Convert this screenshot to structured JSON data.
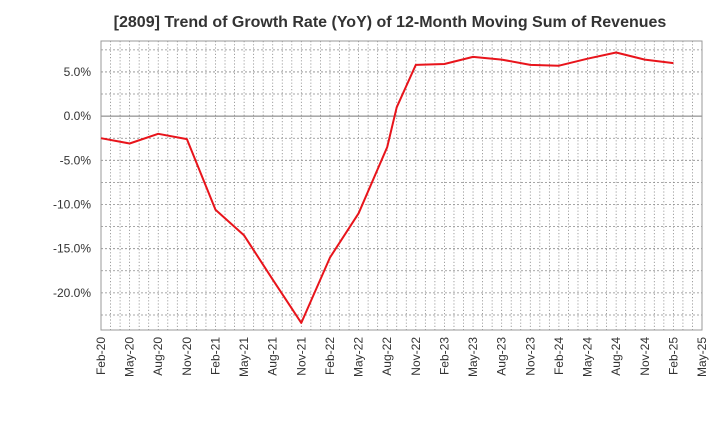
{
  "chart_data": {
    "type": "line",
    "title": "[2809]  Trend of Growth Rate (YoY) of 12-Month Moving Sum of Revenues",
    "xlabel": "",
    "ylabel": "",
    "x_ticks": [
      "Feb-20",
      "May-20",
      "Aug-20",
      "Nov-20",
      "Feb-21",
      "May-21",
      "Aug-21",
      "Nov-21",
      "Feb-22",
      "May-22",
      "Aug-22",
      "Nov-22",
      "Feb-23",
      "May-23",
      "Aug-23",
      "Nov-23",
      "Feb-24",
      "May-24",
      "Aug-24",
      "Nov-24",
      "Feb-25",
      "May-25"
    ],
    "y_ticks": [
      "5.0%",
      "0.0%",
      "-5.0%",
      "-10.0%",
      "-15.0%",
      "-20.0%"
    ],
    "y_tick_values": [
      5,
      0,
      -5,
      -10,
      -15,
      -20
    ],
    "ylim": [
      -24.2,
      8.5
    ],
    "grid": true,
    "series": [
      {
        "color": "#e8141b",
        "x": [
          "Feb-20",
          "May-20",
          "Aug-20",
          "Nov-20",
          "Feb-21",
          "May-21",
          "Aug-21",
          "Nov-21",
          "Feb-22",
          "May-22",
          "Aug-22",
          "Sep-22",
          "Nov-22",
          "Feb-23",
          "May-23",
          "Aug-23",
          "Nov-23",
          "Feb-24",
          "May-24",
          "Aug-24",
          "Nov-24",
          "Feb-25"
        ],
        "values": [
          -2.5,
          -3.1,
          -2.0,
          -2.6,
          -10.6,
          -13.5,
          -18.5,
          -23.4,
          -16.0,
          -11.0,
          -3.5,
          1.0,
          5.8,
          5.9,
          6.7,
          6.4,
          5.8,
          5.7,
          6.5,
          7.2,
          6.4,
          6.0
        ]
      }
    ]
  }
}
